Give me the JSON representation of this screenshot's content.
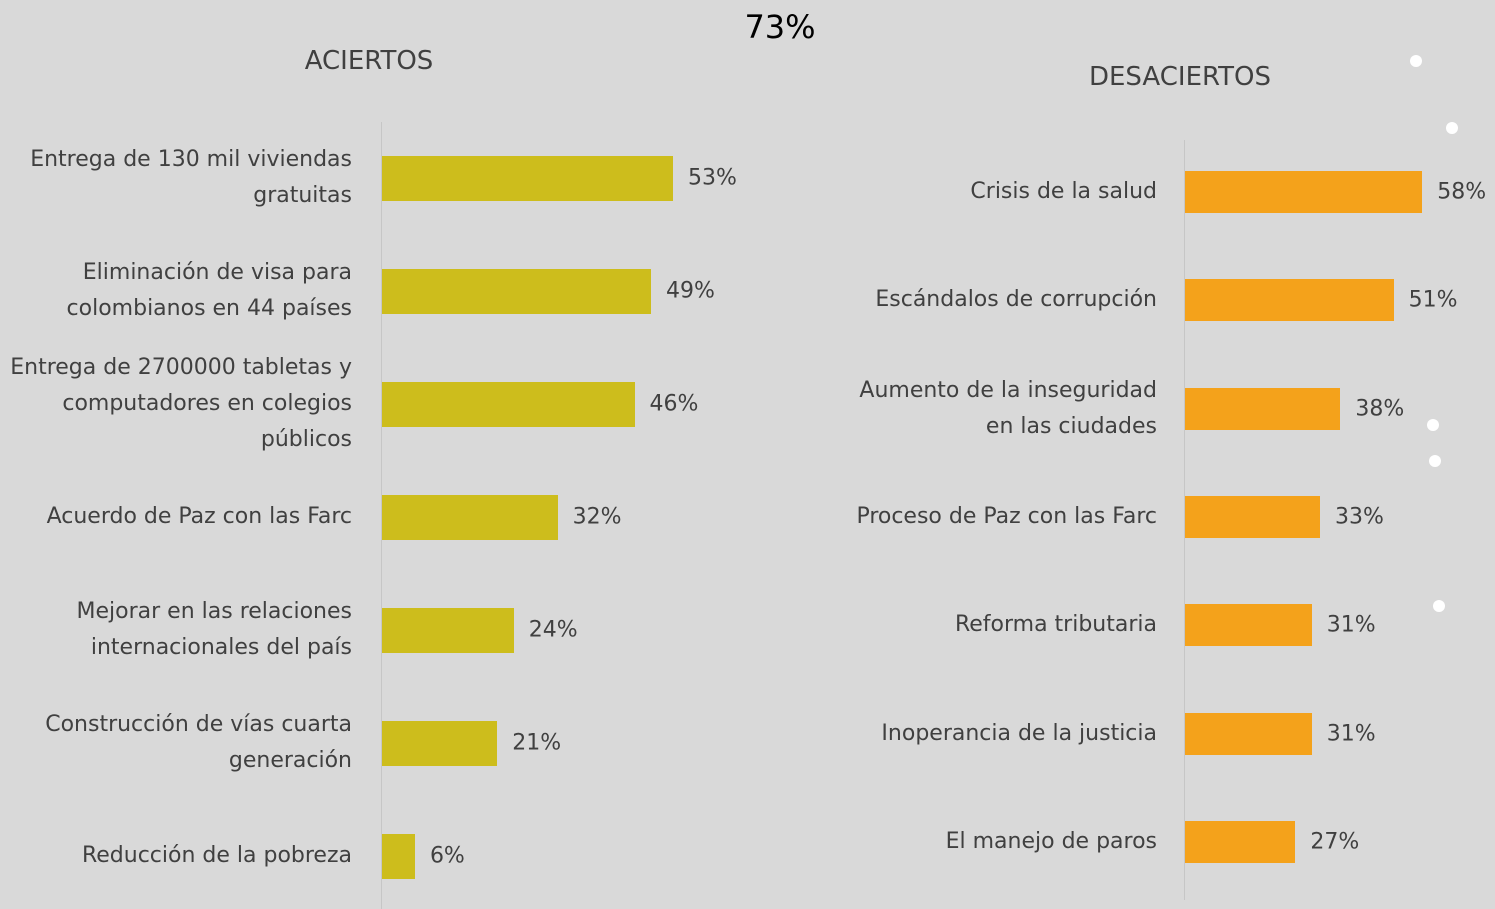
{
  "title": "73%",
  "chart_data": [
    {
      "type": "hbar",
      "title": "ACIERTOS",
      "color": "#cdbd1c",
      "categories": [
        "Entrega de 130 mil viviendas gratuitas",
        "Eliminación de visa para colombianos en 44 países",
        "Entrega de 2700000 tabletas y computadores en colegios públicos",
        "Acuerdo de Paz con las Farc",
        "Mejorar en las relaciones internacionales del país",
        "Construcción de vías cuarta generación",
        "Reducción de la pobreza"
      ],
      "values": [
        53,
        49,
        46,
        32,
        24,
        21,
        6
      ],
      "value_labels": [
        "53%",
        "49%",
        "46%",
        "32%",
        "24%",
        "21%",
        "6%"
      ]
    },
    {
      "type": "hbar",
      "title": "DESACIERTOS",
      "color": "#f4a21b",
      "categories": [
        "Crisis de la salud",
        "Escándalos de corrupción",
        "Aumento de la inseguridad en las ciudades",
        "Proceso de Paz con las Farc",
        "Reforma tributaria",
        "Inoperancia de la justicia",
        "El manejo de paros"
      ],
      "values": [
        58,
        51,
        38,
        33,
        31,
        31,
        27
      ],
      "value_labels": [
        "58%",
        "51%",
        "38%",
        "33%",
        "31%",
        "31%",
        "27%"
      ]
    }
  ]
}
